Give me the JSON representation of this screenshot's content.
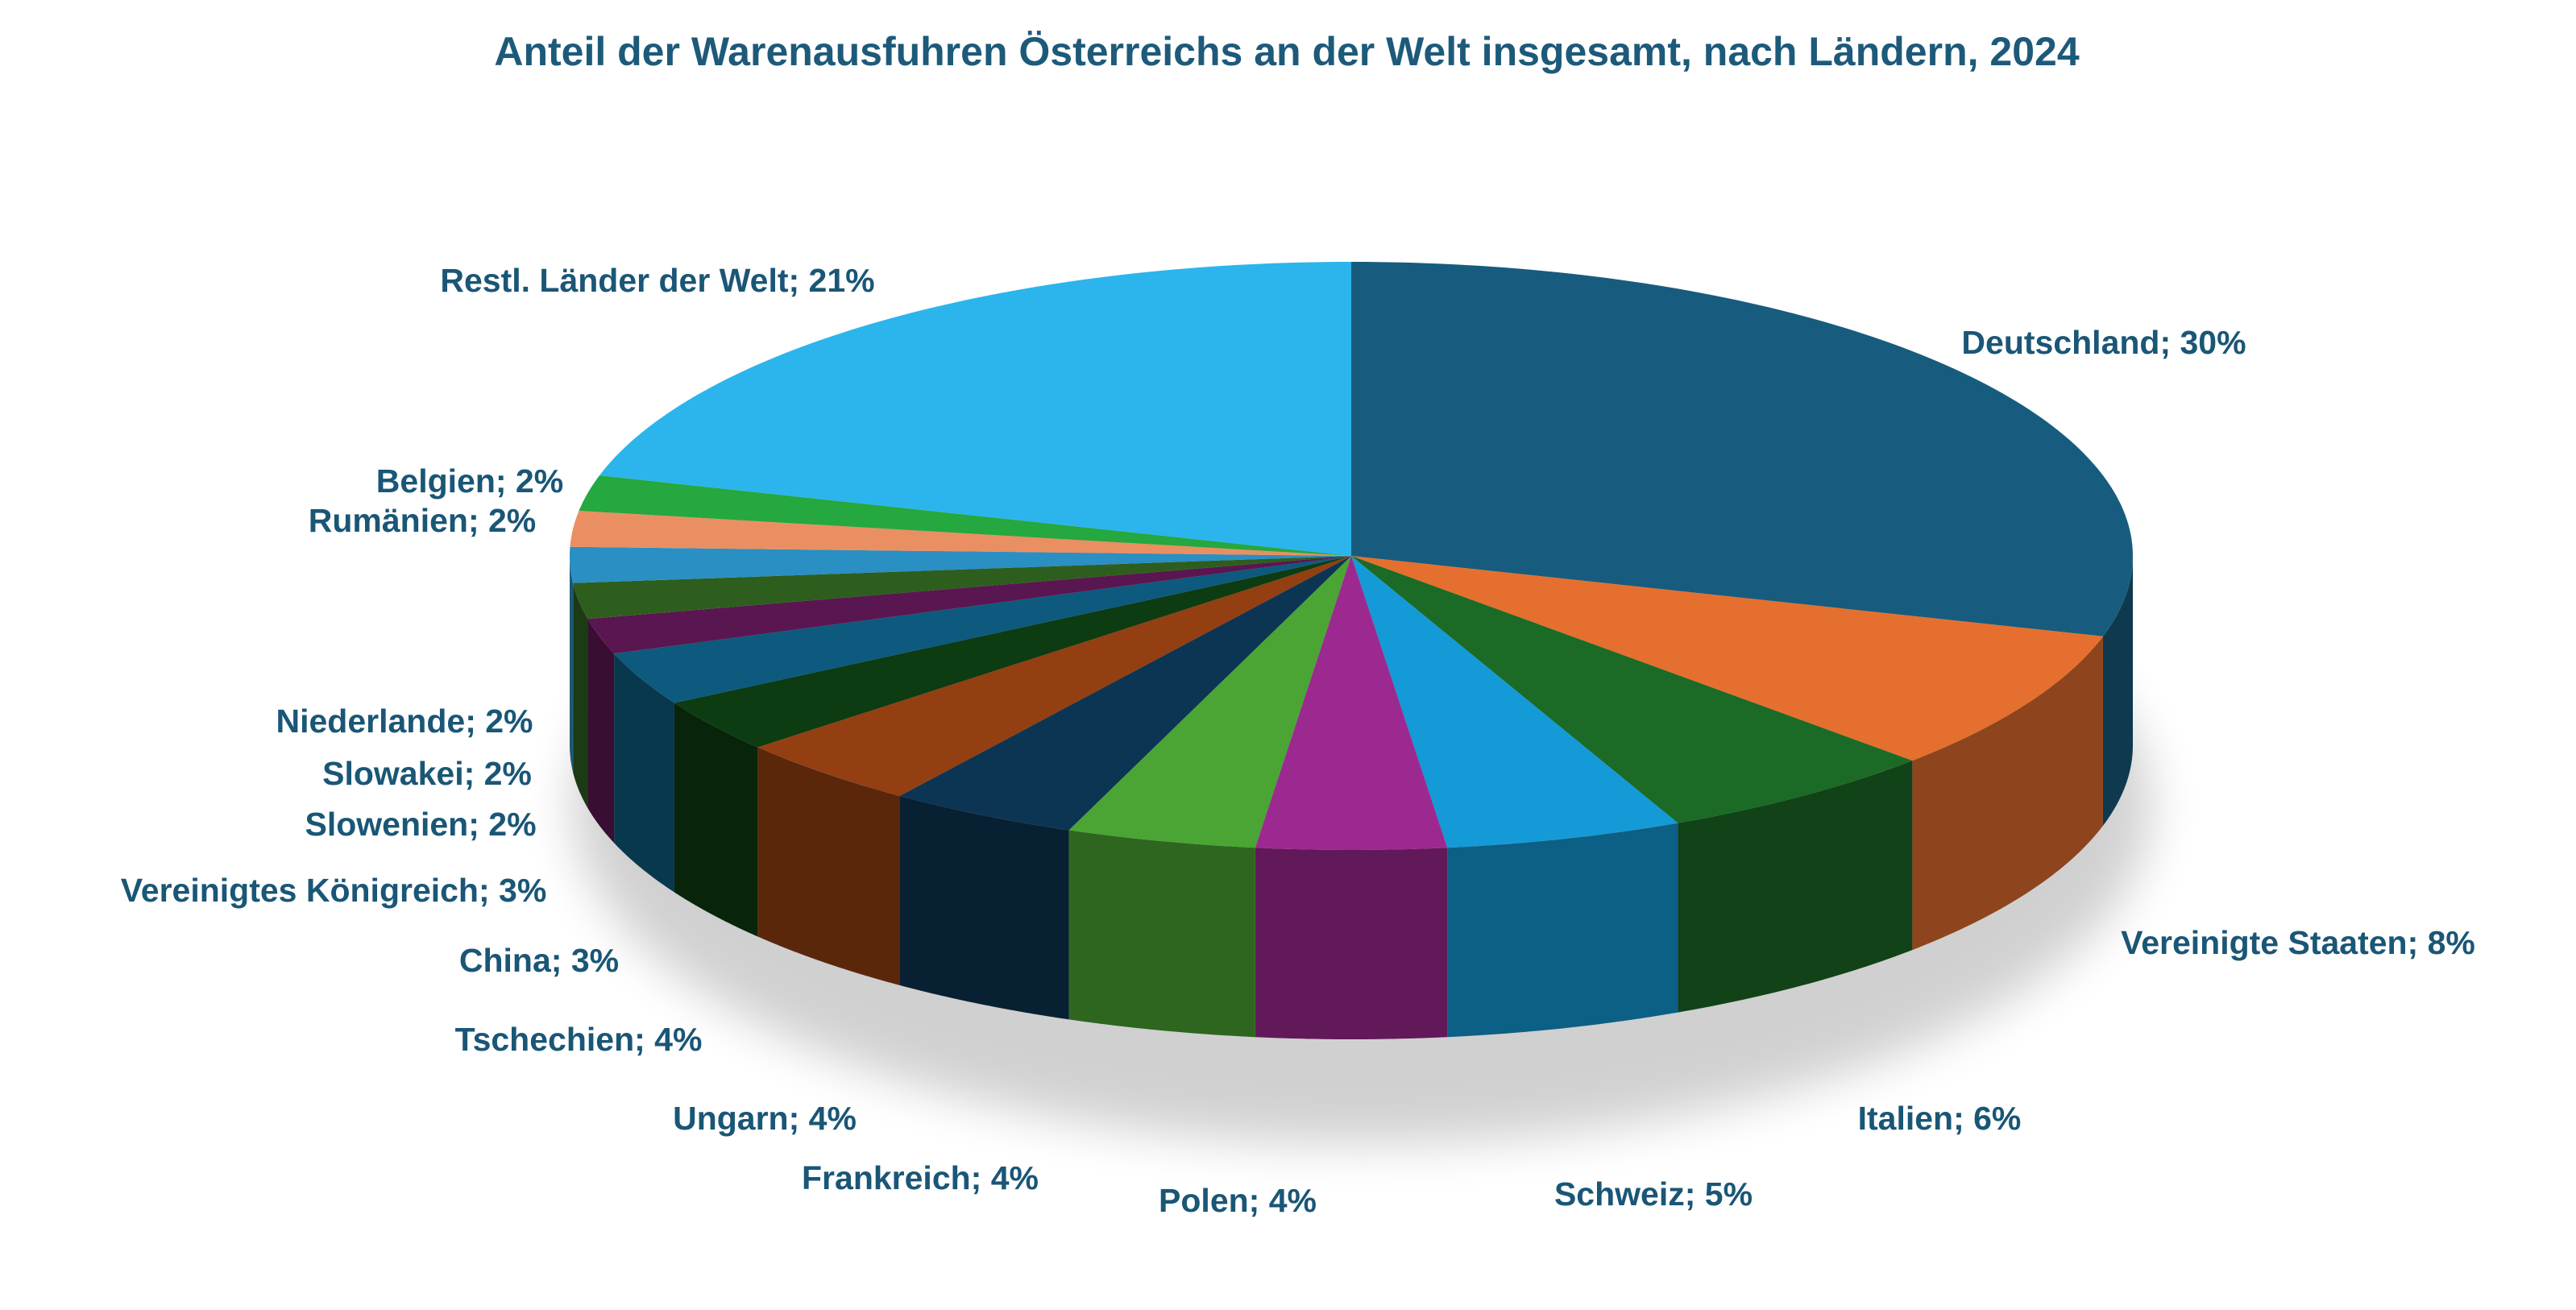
{
  "chart_data": {
    "type": "pie3d",
    "title": "Anteil der Warenausfuhren Österreichs an der Welt insgesamt, nach Ländern, 2024",
    "categories": [
      "Deutschland",
      "Vereinigte Staaten",
      "Italien",
      "Schweiz",
      "Polen",
      "Frankreich",
      "Ungarn",
      "Tschechien",
      "China",
      "Vereinigtes Königreich",
      "Slowenien",
      "Slowakei",
      "Niederlande",
      "Rumänien",
      "Belgien",
      "Restl. Länder der Welt"
    ],
    "values": [
      30,
      8,
      6,
      5,
      4,
      4,
      4,
      4,
      3,
      3,
      2,
      2,
      2,
      2,
      2,
      21
    ],
    "value_labels": [
      "Deutschland; 30%",
      "Vereinigte Staaten; 8%",
      "Italien; 6%",
      "Schweiz; 5%",
      "Polen; 4%",
      "Frankreich; 4%",
      "Ungarn; 4%",
      "Tschechien; 4%",
      "China; 3%",
      "Vereinigtes Königreich; 3%",
      "Slowenien; 2%",
      "Slowakei; 2%",
      "Niederlande; 2%",
      "Rumänien; 2%",
      "Belgien; 2%",
      "Restl. Länder der Welt; 21%"
    ],
    "colors": [
      "#175c7e",
      "#e56f2f",
      "#1b6b26",
      "#149ad6",
      "#9c2990",
      "#4aa534",
      "#0c3553",
      "#933f12",
      "#0d3b12",
      "#0d5a7e",
      "#5a1650",
      "#2d5e1e",
      "#2a8fc2",
      "#ea8f62",
      "#24a83f",
      "#2bb5ec"
    ]
  }
}
